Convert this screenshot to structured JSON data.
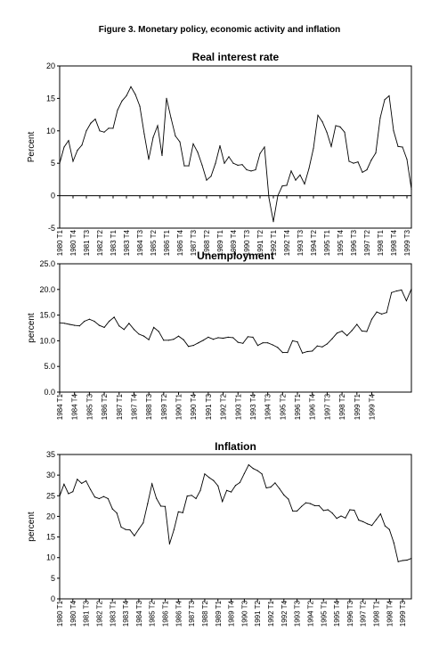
{
  "figure_title": "Figure 3. Monetary policy, economic activity and inflation",
  "chart_data": [
    {
      "type": "line",
      "title": "Real interest rate",
      "xlabel": "",
      "ylabel": "Percent",
      "ylim": [
        -5,
        20
      ],
      "yticks": [
        "-5",
        "0",
        "5",
        "10",
        "15",
        "20"
      ],
      "xtick_labels": [
        "1980 T1",
        "1980 T4",
        "1981 T3",
        "1982 T2",
        "1983 T1",
        "1983 T4",
        "1984 T3",
        "1985 T2",
        "1986 T1",
        "1986 T4",
        "1987 T3",
        "1988 T2",
        "1989 T1",
        "1989 T4",
        "1990 T3",
        "1991 T2",
        "1992 T1",
        "1992 T4",
        "1993 T3",
        "1994 T2",
        "1995 T1",
        "1995 T4",
        "1996 T3",
        "1997 T2",
        "1998 T1",
        "1998 T4",
        "1999 T3"
      ],
      "x_start": "1980 T1",
      "frequency": "quarterly",
      "grid": false,
      "series": [
        {
          "values": [
            5,
            7.5,
            8.5,
            5.3,
            7,
            7.8,
            10,
            11.2,
            11.8,
            10,
            9.8,
            10.4,
            10.4,
            13.2,
            14.6,
            15.4,
            16.8,
            15.6,
            13.8,
            9.5,
            5.6,
            9,
            10.8,
            6.2,
            15,
            12,
            9.2,
            8.3,
            4.6,
            4.6,
            8,
            6.7,
            4.7,
            2.4,
            3,
            5,
            7.7,
            5,
            6,
            5,
            4.7,
            4.8,
            4,
            3.8,
            4,
            6.5,
            7.5,
            -0.3,
            -4,
            0,
            1.5,
            1.6,
            3.8,
            2.4,
            3.2,
            1.8,
            4.2,
            7.3,
            12.4,
            11.4,
            9.8,
            7.6,
            10.8,
            10.6,
            9.8,
            5.3,
            5,
            5.2,
            3.6,
            4,
            5.5,
            6.6,
            12,
            14.8,
            15.4,
            10,
            7.6,
            7.5,
            5.6,
            1
          ]
        }
      ]
    },
    {
      "type": "line",
      "title": "Unemployment",
      "xlabel": "",
      "ylabel": "percent",
      "ylim": [
        0,
        25
      ],
      "yticks": [
        "0.0",
        "5.0",
        "10.0",
        "15.0",
        "20.0",
        "25.0"
      ],
      "xtick_labels": [
        "1984 T1",
        "1984 T4",
        "1985 T3",
        "1986 T2",
        "1987 T1",
        "1987 T4",
        "1988 T3",
        "1989 T2",
        "1990 T1",
        "1990 T4",
        "1991 T3",
        "1992 T2",
        "1993 T1",
        "1993 T4",
        "1994 T3",
        "1995 T2",
        "1996 T1",
        "1996 T4",
        "1997 T3",
        "1998 T2",
        "1999 T1",
        "1999 T4"
      ],
      "x_start": "1984 T1",
      "frequency": "quarterly",
      "grid": false,
      "series": [
        {
          "values": [
            13.5,
            13.4,
            13.2,
            13.0,
            12.9,
            13.8,
            14.2,
            13.8,
            13.0,
            12.6,
            13.8,
            14.6,
            12.9,
            12.2,
            13.4,
            12.2,
            11.3,
            10.9,
            10.2,
            12.6,
            11.8,
            10.1,
            10.1,
            10.3,
            10.9,
            10.2,
            8.9,
            9.1,
            9.6,
            10.1,
            10.7,
            10.3,
            10.6,
            10.5,
            10.7,
            10.6,
            9.7,
            9.5,
            10.8,
            10.7,
            9.1,
            9.6,
            9.6,
            9.2,
            8.7,
            7.7,
            7.7,
            10.0,
            9.8,
            7.6,
            7.9,
            8.0,
            9.0,
            8.8,
            9.4,
            10.4,
            11.5,
            11.9,
            11.0,
            12.0,
            13.2,
            11.9,
            11.8,
            14.2,
            15.6,
            15.2,
            15.5,
            19.4,
            19.7,
            19.9,
            17.8,
            20.1
          ]
        }
      ]
    },
    {
      "type": "line",
      "title": "Inflation",
      "xlabel": "",
      "ylabel": "percent",
      "ylim": [
        0,
        35
      ],
      "yticks": [
        "0",
        "5",
        "10",
        "15",
        "20",
        "25",
        "30",
        "35"
      ],
      "xtick_labels": [
        "1980 T1",
        "1980 T4",
        "1981 T3",
        "1982 T2",
        "1983 T1",
        "1983 T4",
        "1984 T3",
        "1985 T2",
        "1986 T1",
        "1986 T4",
        "1987 T3",
        "1988 T2",
        "1989 T1",
        "1989 T4",
        "1990 T3",
        "1991 T2",
        "1992 T1",
        "1992 T4",
        "1993 T3",
        "1994 T2",
        "1995 T1",
        "1995 T4",
        "1996 T3",
        "1997 T2",
        "1998 T1",
        "1998 T4",
        "1999 T3"
      ],
      "x_start": "1980 T1",
      "frequency": "quarterly",
      "grid": false,
      "series": [
        {
          "values": [
            24.9,
            27.8,
            25.5,
            26,
            29,
            28,
            28.6,
            26.5,
            24.7,
            24.3,
            24.8,
            24.3,
            21.8,
            20.8,
            17.4,
            16.8,
            16.7,
            15.3,
            16.9,
            18.4,
            23.1,
            27.9,
            24.4,
            22.5,
            22.4,
            13.3,
            16.8,
            21.1,
            20.9,
            24.9,
            25.1,
            24.3,
            26.3,
            30.3,
            29.4,
            28.7,
            27.4,
            23.6,
            26.3,
            25.9,
            27.5,
            28.2,
            30.4,
            32.5,
            31.6,
            31.1,
            30.3,
            26.9,
            27.1,
            28.1,
            26.7,
            25.2,
            24.2,
            21.3,
            21.3,
            22.4,
            23.3,
            23.1,
            22.6,
            22.6,
            21.4,
            21.6,
            20.8,
            19.5,
            20.1,
            19.6,
            21.6,
            21.5,
            19.1,
            18.7,
            18.2,
            17.8,
            19.2,
            20.6,
            17.7,
            16.8,
            13.6,
            9.0,
            9.3,
            9.4,
            9.8
          ]
        }
      ]
    }
  ]
}
